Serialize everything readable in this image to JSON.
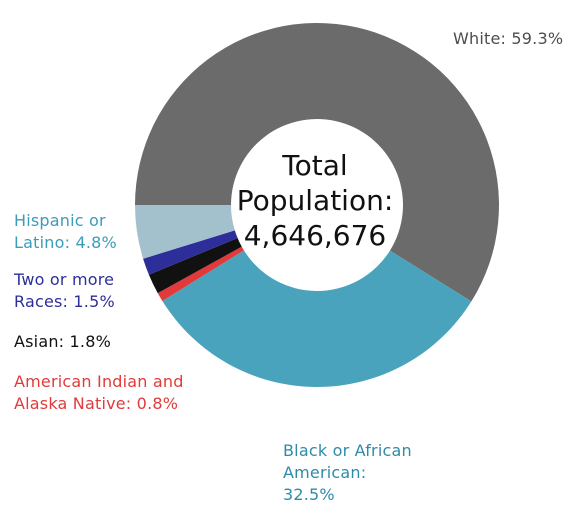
{
  "chart_data": {
    "type": "pie",
    "donut": true,
    "center_text": [
      "Total",
      "Population:",
      "4,646,676"
    ],
    "slices": [
      {
        "label": "White: 59.3%",
        "lines": [
          "White: 59.3%"
        ],
        "value": 59.3,
        "color": "#6b6b6b",
        "label_color": "#4d4d4d"
      },
      {
        "label": "Black or African American: 32.5%",
        "lines": [
          "Black or African",
          "American:",
          "32.5%"
        ],
        "value": 32.5,
        "color": "#4aa3bd",
        "label_color": "#2f8ba8"
      },
      {
        "label": "American Indian and Alaska Native: 0.8%",
        "lines": [
          "American Indian and",
          "Alaska Native: 0.8%"
        ],
        "value": 0.8,
        "color": "#e23a3a",
        "label_color": "#e23a3a"
      },
      {
        "label": "Asian: 1.8%",
        "lines": [
          "Asian: 1.8%"
        ],
        "value": 1.8,
        "color": "#111111",
        "label_color": "#111111"
      },
      {
        "label": "Two or more Races: 1.5%",
        "lines": [
          "Two or more",
          "Races: 1.5%"
        ],
        "value": 1.5,
        "color": "#2e2e9a",
        "label_color": "#2e2e9a"
      },
      {
        "label": "Hispanic or Latino: 4.8%",
        "lines": [
          "Hispanic or",
          "Latino: 4.8%"
        ],
        "value": 4.8,
        "color": "#a3c1cc",
        "label_color": "#3a9cbb"
      }
    ]
  }
}
